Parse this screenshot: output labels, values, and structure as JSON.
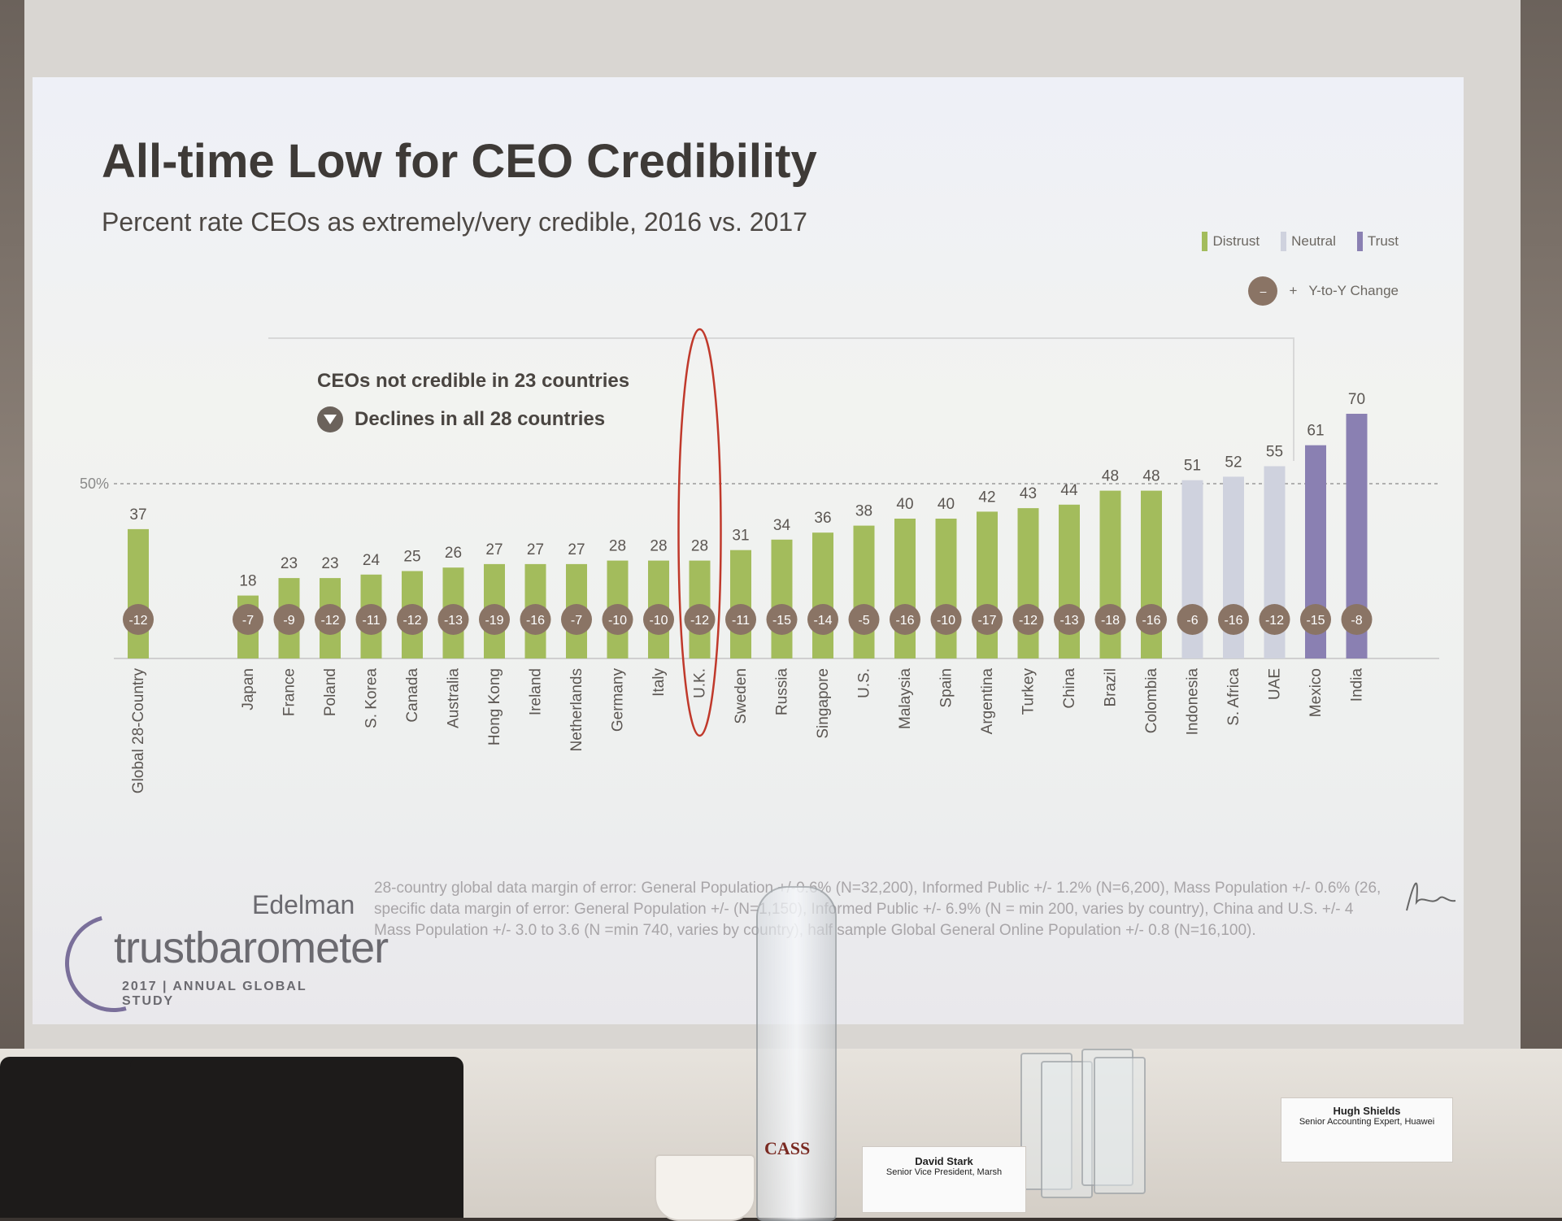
{
  "slide": {
    "title": "All-time Low for CEO Credibility",
    "subtitle": "Percent rate CEOs as extremely/very credible, 2016 vs. 2017",
    "legend": {
      "distrust": "Distrust",
      "neutral": "Neutral",
      "trust": "Trust",
      "yoy_label": "Y-to-Y Change",
      "yoy_sign": "+"
    },
    "callouts": {
      "line1": "CEOs not credible in 23 countries",
      "line2": "Declines in all 28 countries"
    },
    "footnote": {
      "line1": "28-country global data margin of error: General Population +/-0.6% (N=32,200), Informed Public +/- 1.2% (N=6,200), Mass Population +/- 0.6% (26,",
      "line2": "specific data margin of error: General Population +/- (N=1,150), Informed Public +/- 6.9% (N = min 200, varies by country), China and U.S. +/- 4",
      "line3": "Mass Population +/- 3.0 to 3.6 (N =min 740, varies by country), half sample Global General Online Population +/- 0.8 (N=16,100)."
    },
    "logo": {
      "brand": "Edelman",
      "product": "trustbarometer",
      "study": "2017 | ANNUAL GLOBAL STUDY"
    }
  },
  "room": {
    "nameplates": [
      {
        "name": "David Stark",
        "role": "Senior Vice President, Marsh"
      },
      {
        "name": "Hugh Shields",
        "role": "Senior Accounting Expert, Huawei"
      }
    ],
    "bottle_label": "CASS"
  },
  "colors": {
    "distrust": "#a3bc5c",
    "neutral": "#cfd2de",
    "trust": "#8a80b2",
    "yoy_badge": "#8a7465",
    "highlight": "#c0392b"
  },
  "chart_data": {
    "type": "bar",
    "categories": [
      "Global 28-Country",
      "Japan",
      "France",
      "Poland",
      "S. Korea",
      "Canada",
      "Australia",
      "Hong Kong",
      "Ireland",
      "Netherlands",
      "Germany",
      "Italy",
      "U.K.",
      "Sweden",
      "Russia",
      "Singapore",
      "U.S.",
      "Malaysia",
      "Spain",
      "Argentina",
      "Turkey",
      "China",
      "Brazil",
      "Colombia",
      "Indonesia",
      "S. Africa",
      "UAE",
      "Mexico",
      "India"
    ],
    "series": [
      {
        "values": [
          37,
          18,
          23,
          23,
          24,
          25,
          26,
          27,
          27,
          27,
          28,
          28,
          28,
          31,
          34,
          36,
          38,
          40,
          40,
          42,
          43,
          44,
          48,
          48,
          51,
          52,
          55,
          61,
          70
        ]
      }
    ],
    "yoy_change": [
      -12,
      -7,
      -9,
      -12,
      -11,
      -12,
      -13,
      -19,
      -16,
      -7,
      -10,
      -10,
      -12,
      -11,
      -15,
      -14,
      -5,
      -16,
      -10,
      -17,
      -12,
      -13,
      -18,
      -16,
      -6,
      -16,
      -12,
      -15,
      -8
    ],
    "trust_level": [
      "distrust",
      "distrust",
      "distrust",
      "distrust",
      "distrust",
      "distrust",
      "distrust",
      "distrust",
      "distrust",
      "distrust",
      "distrust",
      "distrust",
      "distrust",
      "distrust",
      "distrust",
      "distrust",
      "distrust",
      "distrust",
      "distrust",
      "distrust",
      "distrust",
      "distrust",
      "distrust",
      "distrust",
      "neutral",
      "neutral",
      "neutral",
      "trust",
      "trust"
    ],
    "reference_line": {
      "value": 50,
      "label": "50%"
    },
    "highlighted_category": "U.K.",
    "ylim": [
      0,
      70
    ],
    "xlabel": "",
    "ylabel": ""
  }
}
